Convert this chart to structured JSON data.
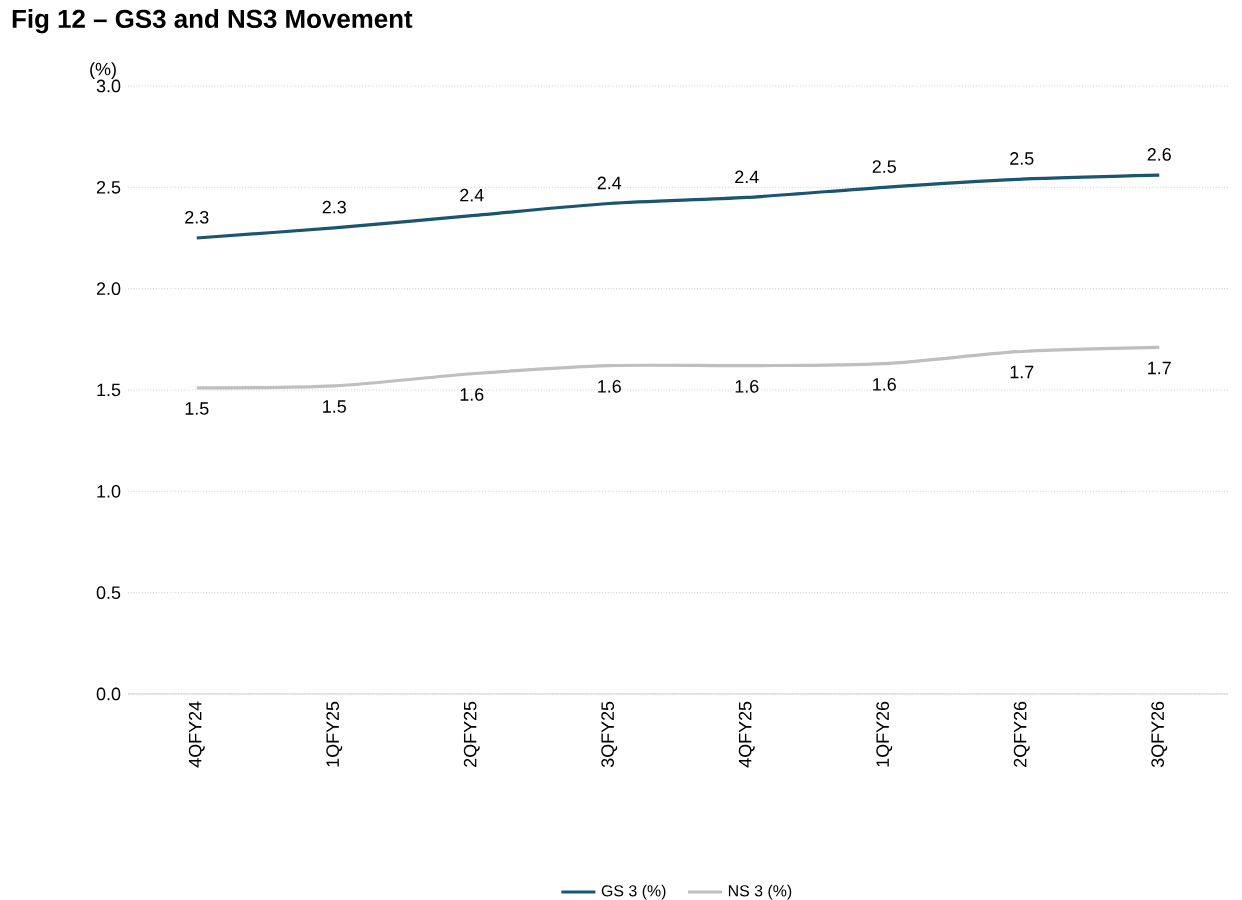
{
  "chart_data": {
    "type": "line",
    "title": "Fig 12 – GS3 and NS3 Movement",
    "ylabel": "(%)",
    "categories": [
      "4QFY24",
      "1QFY25",
      "2QFY25",
      "3QFY25",
      "4QFY25",
      "1QFY26",
      "2QFY26",
      "3QFY26"
    ],
    "series": [
      {
        "name": "GS 3 (%)",
        "color": "#1a5670",
        "values": [
          2.25,
          2.3,
          2.36,
          2.42,
          2.45,
          2.5,
          2.54,
          2.56
        ],
        "value_labels": [
          "2.3",
          "2.3",
          "2.4",
          "2.4",
          "2.4",
          "2.5",
          "2.5",
          "2.6"
        ]
      },
      {
        "name": "NS 3 (%)",
        "color": "#bfbfbf",
        "values": [
          1.51,
          1.52,
          1.58,
          1.62,
          1.62,
          1.63,
          1.69,
          1.71
        ],
        "value_labels": [
          "1.5",
          "1.5",
          "1.6",
          "1.6",
          "1.6",
          "1.6",
          "1.7",
          "1.7"
        ]
      }
    ],
    "ylim": [
      0,
      3
    ],
    "yticks": [
      {
        "value": 0,
        "label": "0.0"
      },
      0.5,
      {
        "value": 1,
        "label": "1.0"
      },
      1.5,
      {
        "value": 2,
        "label": "2.0"
      },
      2.5,
      {
        "value": 3,
        "label": "3.0"
      }
    ],
    "grid": "y",
    "legend": "bottom",
    "marker": "none",
    "line_style": "solid"
  }
}
